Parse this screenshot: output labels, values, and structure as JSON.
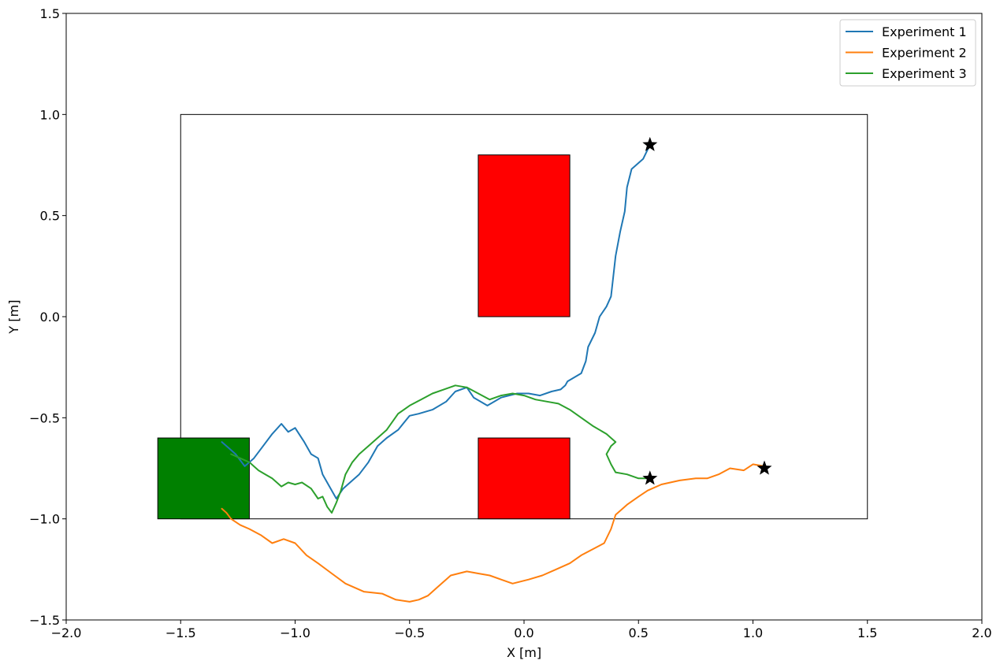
{
  "chart_data": {
    "type": "line",
    "title": "",
    "xlabel": "X [m]",
    "ylabel": "Y [m]",
    "xlim": [
      -2.0,
      2.0
    ],
    "ylim": [
      -1.5,
      1.5
    ],
    "xticks": [
      -2.0,
      -1.5,
      -1.0,
      -0.5,
      0.0,
      0.5,
      1.0,
      1.5,
      2.0
    ],
    "xtick_labels": [
      "−2.0",
      "−1.5",
      "−1.0",
      "−0.5",
      "0.0",
      "0.5",
      "1.0",
      "1.5",
      "2.0"
    ],
    "yticks": [
      -1.5,
      -1.0,
      -0.5,
      0.0,
      0.5,
      1.0,
      1.5
    ],
    "ytick_labels": [
      "−1.5",
      "−1.0",
      "−0.5",
      "0.0",
      "0.5",
      "1.0",
      "1.5"
    ],
    "grid": false,
    "legend": "top-right",
    "boundary": {
      "x0": -1.5,
      "y0": -1.0,
      "x1": 1.5,
      "y1": 1.0,
      "color": "#000000"
    },
    "obstacles": [
      {
        "x0": -0.2,
        "y0": 0.0,
        "x1": 0.2,
        "y1": 0.8,
        "color": "#ff0000"
      },
      {
        "x0": -0.2,
        "y0": -1.0,
        "x1": 0.2,
        "y1": -0.6,
        "color": "#ff0000"
      }
    ],
    "goal_region": {
      "x0": -1.6,
      "y0": -1.0,
      "x1": -1.2,
      "y1": -0.6,
      "color": "#008000"
    },
    "series": [
      {
        "name": "Experiment 1",
        "color": "#1f77b4",
        "x": [
          0.55,
          0.52,
          0.47,
          0.45,
          0.44,
          0.42,
          0.4,
          0.39,
          0.38,
          0.36,
          0.33,
          0.31,
          0.28,
          0.27,
          0.25,
          0.22,
          0.19,
          0.18,
          0.16,
          0.12,
          0.07,
          0.02,
          -0.03,
          -0.1,
          -0.16,
          -0.22,
          -0.25,
          -0.3,
          -0.34,
          -0.4,
          -0.46,
          -0.5,
          -0.55,
          -0.6,
          -0.64,
          -0.68,
          -0.72,
          -0.76,
          -0.79,
          -0.82,
          -0.85,
          -0.88,
          -0.9,
          -0.93,
          -0.96,
          -1.0,
          -1.03,
          -1.06,
          -1.1,
          -1.14,
          -1.18,
          -1.22,
          -1.26,
          -1.3,
          -1.32
        ],
        "y": [
          0.85,
          0.78,
          0.73,
          0.64,
          0.52,
          0.42,
          0.3,
          0.2,
          0.1,
          0.05,
          0.0,
          -0.08,
          -0.15,
          -0.22,
          -0.28,
          -0.3,
          -0.32,
          -0.34,
          -0.36,
          -0.37,
          -0.39,
          -0.38,
          -0.38,
          -0.4,
          -0.44,
          -0.4,
          -0.35,
          -0.37,
          -0.42,
          -0.46,
          -0.48,
          -0.49,
          -0.56,
          -0.6,
          -0.64,
          -0.72,
          -0.78,
          -0.82,
          -0.85,
          -0.9,
          -0.84,
          -0.78,
          -0.7,
          -0.68,
          -0.62,
          -0.55,
          -0.57,
          -0.53,
          -0.58,
          -0.64,
          -0.7,
          -0.74,
          -0.68,
          -0.64,
          -0.62
        ]
      },
      {
        "name": "Experiment 2",
        "color": "#ff7f0e",
        "x": [
          1.05,
          1.0,
          0.96,
          0.9,
          0.85,
          0.8,
          0.75,
          0.68,
          0.6,
          0.54,
          0.5,
          0.45,
          0.4,
          0.38,
          0.35,
          0.3,
          0.25,
          0.2,
          0.14,
          0.08,
          0.02,
          -0.05,
          -0.1,
          -0.15,
          -0.2,
          -0.25,
          -0.32,
          -0.38,
          -0.42,
          -0.46,
          -0.5,
          -0.56,
          -0.62,
          -0.7,
          -0.78,
          -0.84,
          -0.9,
          -0.95,
          -1.0,
          -1.05,
          -1.1,
          -1.15,
          -1.2,
          -1.24,
          -1.28,
          -1.3,
          -1.32
        ],
        "y": [
          -0.74,
          -0.73,
          -0.76,
          -0.75,
          -0.78,
          -0.8,
          -0.8,
          -0.81,
          -0.83,
          -0.86,
          -0.89,
          -0.93,
          -0.98,
          -1.05,
          -1.12,
          -1.15,
          -1.18,
          -1.22,
          -1.25,
          -1.28,
          -1.3,
          -1.32,
          -1.3,
          -1.28,
          -1.27,
          -1.26,
          -1.28,
          -1.34,
          -1.38,
          -1.4,
          -1.41,
          -1.4,
          -1.37,
          -1.36,
          -1.32,
          -1.27,
          -1.22,
          -1.18,
          -1.12,
          -1.1,
          -1.12,
          -1.08,
          -1.05,
          -1.03,
          -1.0,
          -0.97,
          -0.95
        ]
      },
      {
        "name": "Experiment 3",
        "color": "#2ca02c",
        "x": [
          0.55,
          0.5,
          0.45,
          0.4,
          0.38,
          0.36,
          0.38,
          0.4,
          0.36,
          0.3,
          0.25,
          0.2,
          0.15,
          0.1,
          0.05,
          0.0,
          -0.05,
          -0.1,
          -0.15,
          -0.2,
          -0.25,
          -0.3,
          -0.35,
          -0.4,
          -0.45,
          -0.5,
          -0.55,
          -0.6,
          -0.64,
          -0.68,
          -0.72,
          -0.75,
          -0.78,
          -0.8,
          -0.82,
          -0.84,
          -0.86,
          -0.88,
          -0.9,
          -0.93,
          -0.97,
          -1.0,
          -1.03,
          -1.06,
          -1.1,
          -1.13,
          -1.16,
          -1.2,
          -1.24,
          -1.28
        ],
        "y": [
          -0.8,
          -0.8,
          -0.78,
          -0.77,
          -0.73,
          -0.68,
          -0.64,
          -0.62,
          -0.58,
          -0.54,
          -0.5,
          -0.46,
          -0.43,
          -0.42,
          -0.41,
          -0.39,
          -0.38,
          -0.39,
          -0.41,
          -0.38,
          -0.35,
          -0.34,
          -0.36,
          -0.38,
          -0.41,
          -0.44,
          -0.48,
          -0.56,
          -0.6,
          -0.64,
          -0.68,
          -0.72,
          -0.78,
          -0.86,
          -0.92,
          -0.97,
          -0.94,
          -0.89,
          -0.9,
          -0.85,
          -0.82,
          -0.83,
          -0.82,
          -0.84,
          -0.8,
          -0.78,
          -0.76,
          -0.72,
          -0.7,
          -0.68
        ]
      }
    ],
    "markers": [
      {
        "x": 0.55,
        "y": 0.85,
        "symbol": "star",
        "color": "#000000"
      },
      {
        "x": 0.55,
        "y": -0.8,
        "symbol": "star",
        "color": "#000000"
      },
      {
        "x": 1.05,
        "y": -0.75,
        "symbol": "star",
        "color": "#000000"
      }
    ]
  }
}
